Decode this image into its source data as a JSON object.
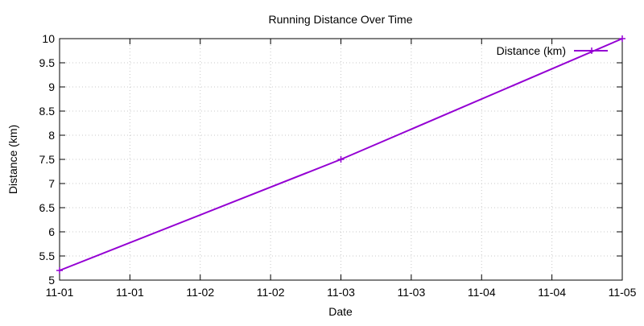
{
  "chart_data": {
    "type": "line",
    "title": "Running Distance Over Time",
    "xlabel": "Date",
    "ylabel": "Distance (km)",
    "x_tick_labels": [
      "11-01",
      "11-01",
      "11-02",
      "11-02",
      "11-03",
      "11-03",
      "11-04",
      "11-04",
      "11-05"
    ],
    "y_tick_labels": [
      "5",
      "5.5",
      "6",
      "6.5",
      "7",
      "7.5",
      "8",
      "8.5",
      "9",
      "9.5",
      "10"
    ],
    "ylim": [
      5,
      10
    ],
    "grid": true,
    "legend_position": "top-right",
    "series": [
      {
        "name": "Distance (km)",
        "color": "#9400d3",
        "x": [
          "11-01",
          "11-03",
          "11-05"
        ],
        "x_fraction": [
          0.0,
          0.5,
          1.0
        ],
        "values": [
          5.2,
          7.5,
          10.0
        ]
      }
    ]
  }
}
